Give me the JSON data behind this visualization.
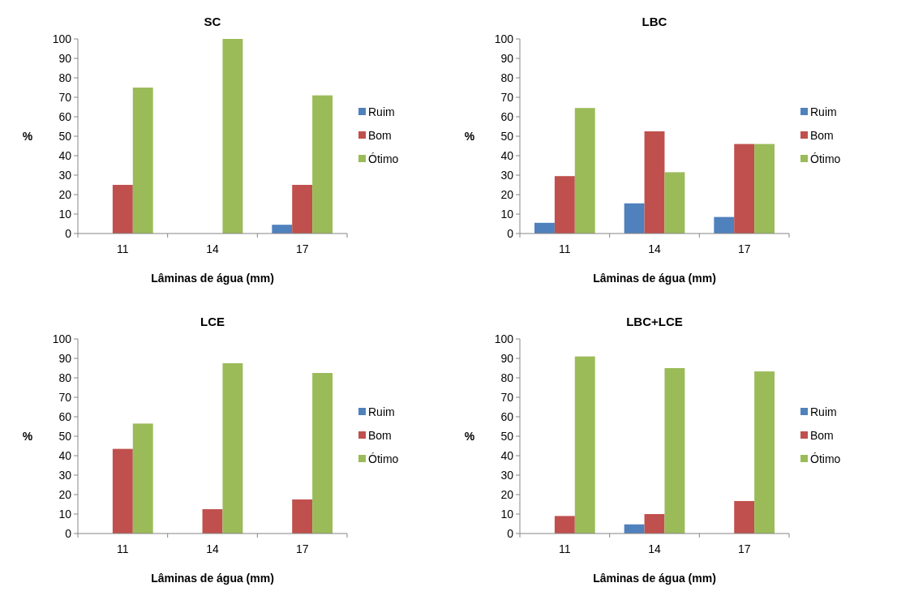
{
  "chart_data": [
    {
      "type": "bar",
      "title": "SC",
      "xlabel": "Lâminas de água (mm)",
      "ylabel": "%",
      "categories": [
        "11",
        "14",
        "17"
      ],
      "ylim": [
        0,
        100
      ],
      "yticks": [
        0,
        10,
        20,
        30,
        40,
        50,
        60,
        70,
        80,
        90,
        100
      ],
      "grid": false,
      "legend": "right",
      "series": [
        {
          "name": "Ruim",
          "color": "#4f81bd",
          "values": [
            0,
            0,
            4.5
          ]
        },
        {
          "name": "Bom",
          "color": "#c0504d",
          "values": [
            25,
            0,
            25
          ]
        },
        {
          "name": "Ótimo",
          "color": "#9bbb59",
          "values": [
            75,
            100,
            71
          ]
        }
      ]
    },
    {
      "type": "bar",
      "title": "LBC",
      "xlabel": "Lâminas de água (mm)",
      "ylabel": "%",
      "categories": [
        "11",
        "14",
        "17"
      ],
      "ylim": [
        0,
        100
      ],
      "yticks": [
        0,
        10,
        20,
        30,
        40,
        50,
        60,
        70,
        80,
        90,
        100
      ],
      "grid": false,
      "legend": "right",
      "series": [
        {
          "name": "Ruim",
          "color": "#4f81bd",
          "values": [
            5.5,
            15.5,
            8.5
          ]
        },
        {
          "name": "Bom",
          "color": "#c0504d",
          "values": [
            29.5,
            52.5,
            46
          ]
        },
        {
          "name": "Ótimo",
          "color": "#9bbb59",
          "values": [
            64.5,
            31.5,
            46
          ]
        }
      ]
    },
    {
      "type": "bar",
      "title": "LCE",
      "xlabel": "Lâminas de água (mm)",
      "ylabel": "%",
      "categories": [
        "11",
        "14",
        "17"
      ],
      "ylim": [
        0,
        100
      ],
      "yticks": [
        0,
        10,
        20,
        30,
        40,
        50,
        60,
        70,
        80,
        90,
        100
      ],
      "grid": false,
      "legend": "right",
      "series": [
        {
          "name": "Ruim",
          "color": "#4f81bd",
          "values": [
            0,
            0,
            0
          ]
        },
        {
          "name": "Bom",
          "color": "#c0504d",
          "values": [
            43.5,
            12.5,
            17.5
          ]
        },
        {
          "name": "Ótimo",
          "color": "#9bbb59",
          "values": [
            56.5,
            87.5,
            82.5
          ]
        }
      ]
    },
    {
      "type": "bar",
      "title": "LBC+LCE",
      "xlabel": "Lâminas de água (mm)",
      "ylabel": "%",
      "categories": [
        "11",
        "14",
        "17"
      ],
      "ylim": [
        0,
        100
      ],
      "yticks": [
        0,
        10,
        20,
        30,
        40,
        50,
        60,
        70,
        80,
        90,
        100
      ],
      "grid": false,
      "legend": "right",
      "series": [
        {
          "name": "Ruim",
          "color": "#4f81bd",
          "values": [
            0,
            4.7,
            0
          ]
        },
        {
          "name": "Bom",
          "color": "#c0504d",
          "values": [
            9,
            10,
            16.7
          ]
        },
        {
          "name": "Ótimo",
          "color": "#9bbb59",
          "values": [
            91,
            85,
            83.3
          ]
        }
      ]
    }
  ]
}
